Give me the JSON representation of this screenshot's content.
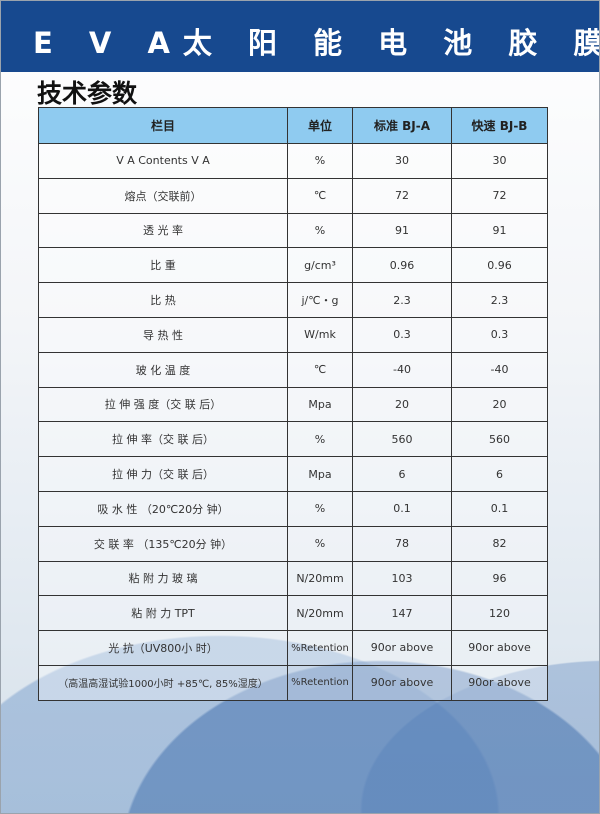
{
  "title": "E V A太 阳 能 电 池 胶 膜",
  "subtitle": "技术参数",
  "colors": {
    "header_band": "#17498f",
    "table_header": "#8fcbf0"
  },
  "table": {
    "headers": [
      "栏目",
      "单位",
      "标准 BJ-A",
      "快速 BJ-B"
    ],
    "rows": [
      [
        "V A Contents V A",
        "%",
        "30",
        "30"
      ],
      [
        "熔点（交联前）",
        "℃",
        "72",
        "72"
      ],
      [
        "透 光 率",
        "%",
        "91",
        "91"
      ],
      [
        "比 重",
        "g/cm³",
        "0.96",
        "0.96"
      ],
      [
        "比 热",
        "j/℃・g",
        "2.3",
        "2.3"
      ],
      [
        "导 热 性",
        "W/mk",
        "0.3",
        "0.3"
      ],
      [
        "玻 化 温 度",
        "℃",
        "-40",
        "-40"
      ],
      [
        "拉 伸 强 度（交 联 后）",
        "Mpa",
        "20",
        "20"
      ],
      [
        "拉 伸 率（交 联 后）",
        "%",
        "560",
        "560"
      ],
      [
        "拉 伸 力（交 联 后）",
        "Mpa",
        "6",
        "6"
      ],
      [
        "吸 水 性 （20℃20分 钟）",
        "%",
        "0.1",
        "0.1"
      ],
      [
        "交 联 率 （135℃20分 钟）",
        "%",
        "78",
        "82"
      ],
      [
        "粘 附 力 玻 璃",
        "N/20mm",
        "103",
        "96"
      ],
      [
        "粘 附 力 TPT",
        "N/20mm",
        "147",
        "120"
      ],
      [
        "光 抗（UV800小 时）",
        "%Retention",
        "90or above",
        "90or above"
      ],
      [
        "（高温高湿试验1000小时 +85℃, 85%湿度）",
        "%Retention",
        "90or above",
        "90or above"
      ]
    ]
  }
}
